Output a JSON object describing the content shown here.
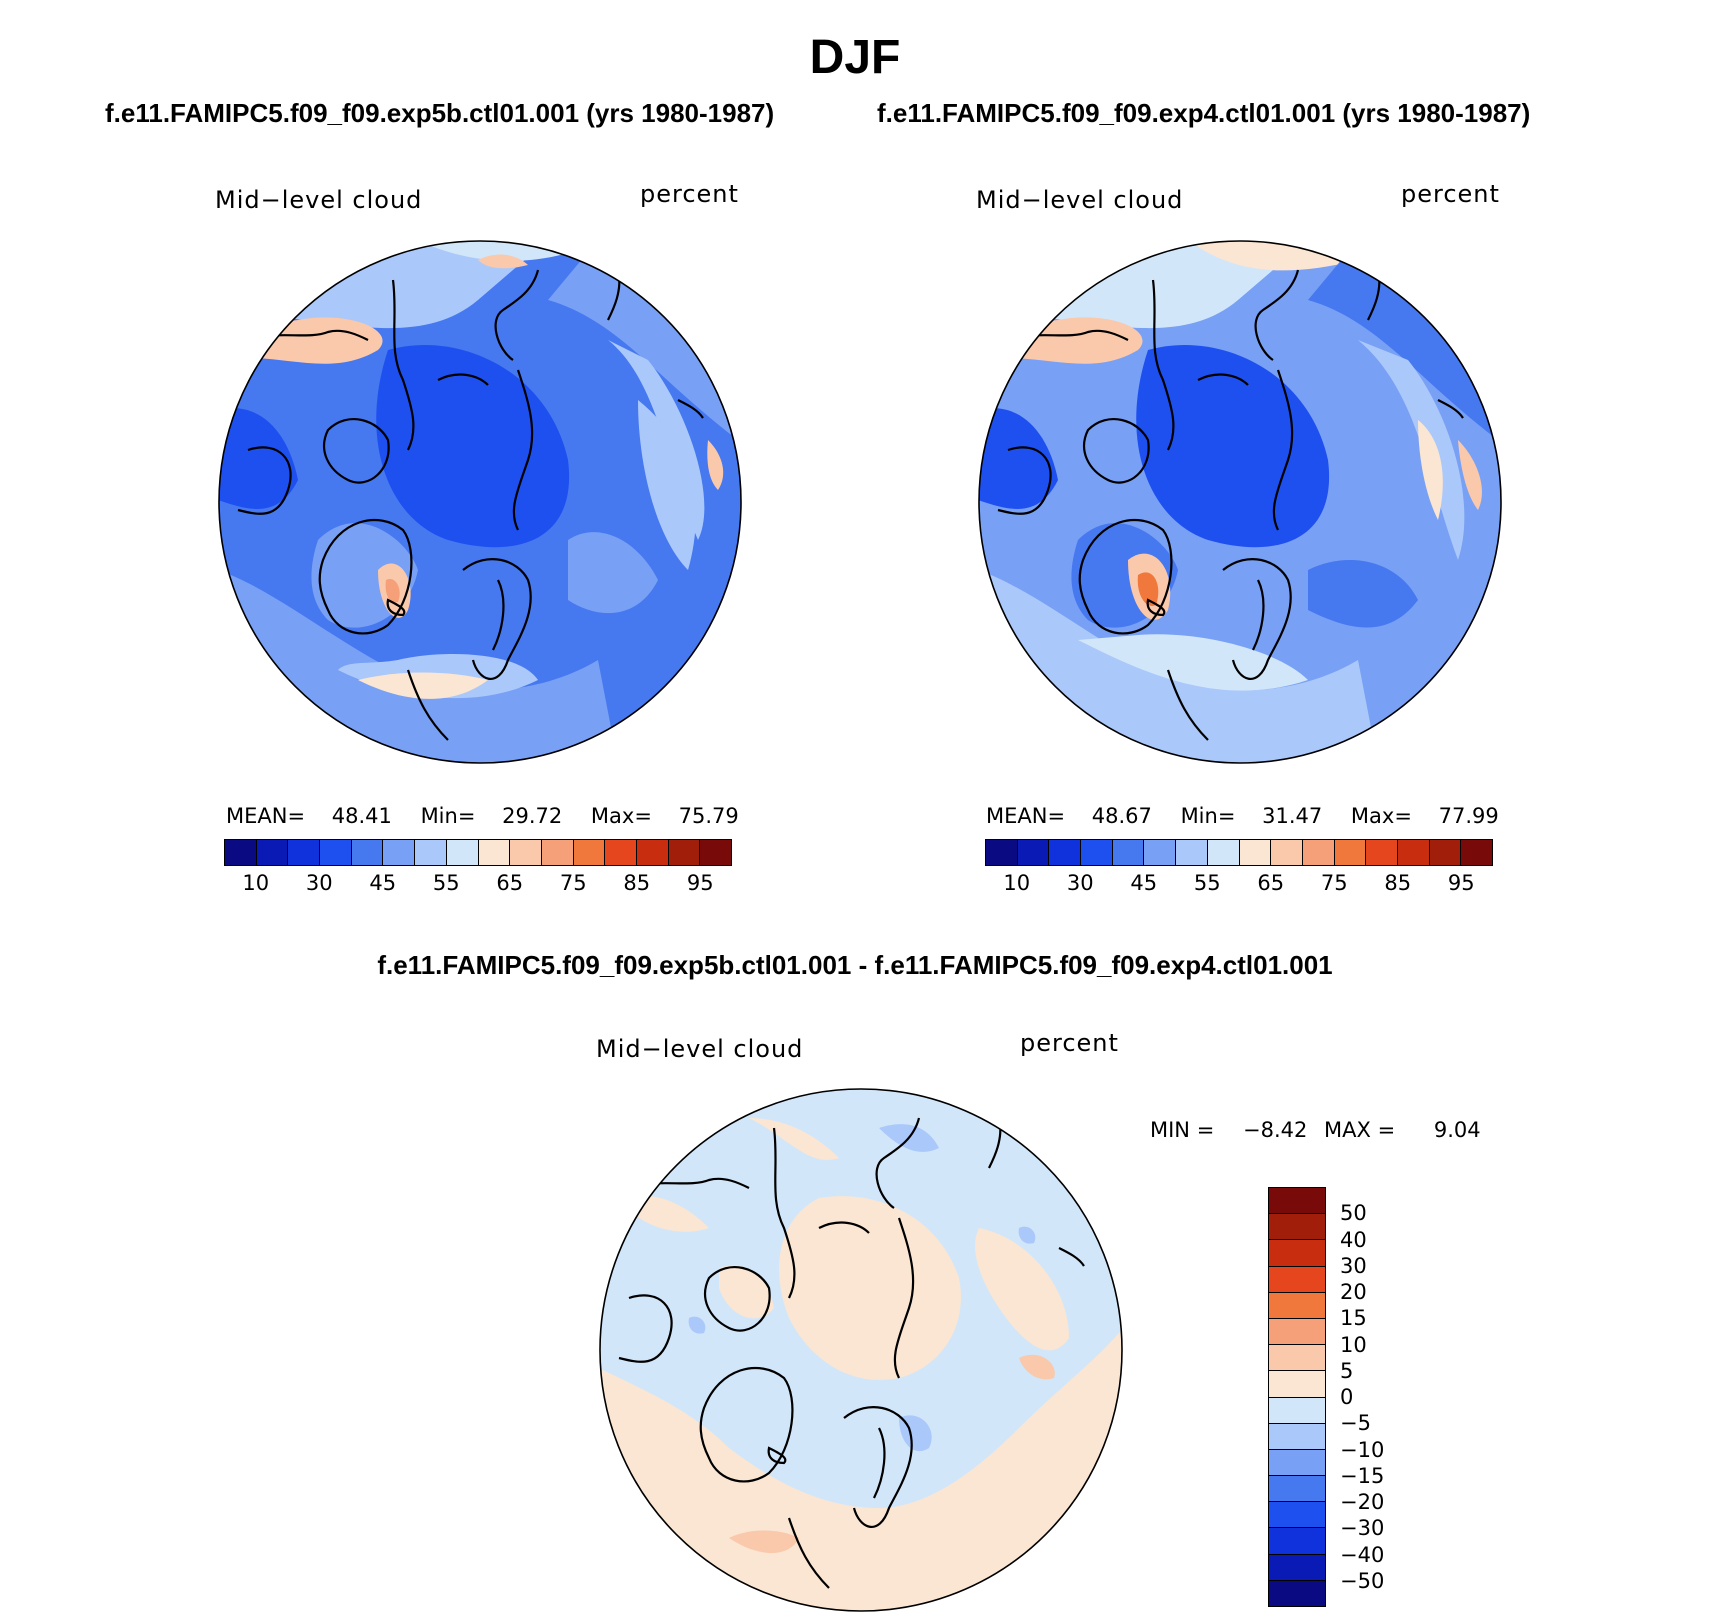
{
  "figure": {
    "season": "DJF",
    "case1_header": "f.e11.FAMIPC5.f09_f09.exp5b.ctl01.001 (yrs 1980-1987)",
    "case2_header": "f.e11.FAMIPC5.f09_f09.exp4.ctl01.001 (yrs 1980-1987)",
    "diff_header": "f.e11.FAMIPC5.f09_f09.exp5b.ctl01.001 - f.e11.FAMIPC5.f09_f09.exp4.ctl01.001"
  },
  "panels": {
    "p1": {
      "variable": "Mid−level cloud",
      "units": "percent",
      "mean_label": "MEAN=",
      "mean": "48.41",
      "min_label": "Min=",
      "min": "29.72",
      "max_label": "Max=",
      "max": "75.79"
    },
    "p2": {
      "variable": "Mid−level cloud",
      "units": "percent",
      "mean_label": "MEAN=",
      "mean": "48.67",
      "min_label": "Min=",
      "min": "31.47",
      "max_label": "Max=",
      "max": "77.99"
    },
    "diff": {
      "variable": "Mid−level cloud",
      "units": "percent",
      "min_label": "MIN =",
      "min": "−8.42",
      "max_label": "MAX =",
      "max": "9.04"
    }
  },
  "colorbars": {
    "abs": {
      "colors": [
        "#0a0a82",
        "#0a1ab4",
        "#0f32dc",
        "#1e50f0",
        "#4678f0",
        "#78a0f5",
        "#aac8fa",
        "#d2e6fa",
        "#fae6d2",
        "#fac8aa",
        "#f5a078",
        "#f0783c",
        "#e6461e",
        "#c82d0f",
        "#a01e0a",
        "#780a0a"
      ],
      "labels": [
        "10",
        "30",
        "45",
        "55",
        "65",
        "75",
        "85",
        "95"
      ]
    },
    "diff": {
      "colors_top_to_bottom": [
        "#780a0a",
        "#a01e0a",
        "#c82d0f",
        "#e6461e",
        "#f0783c",
        "#f5a078",
        "#fac8aa",
        "#fae6d2",
        "#d2e6fa",
        "#aac8fa",
        "#78a0f5",
        "#4678f0",
        "#1e50f0",
        "#0f32dc",
        "#0a1ab4",
        "#0a0a82"
      ],
      "labels": [
        "50",
        "40",
        "30",
        "20",
        "15",
        "10",
        "5",
        "0",
        "−5",
        "−10",
        "−15",
        "−20",
        "−30",
        "−40",
        "−50"
      ]
    }
  }
}
